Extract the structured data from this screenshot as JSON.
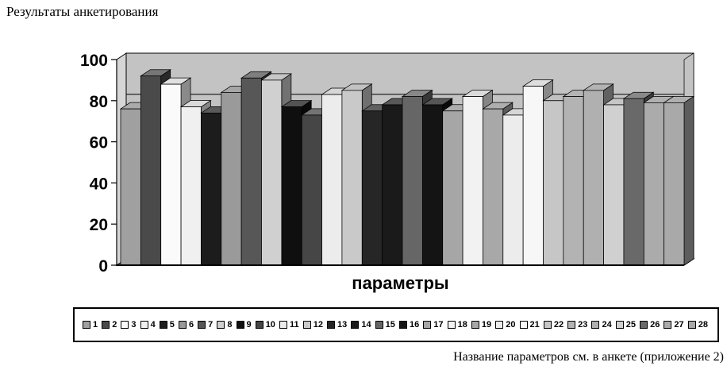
{
  "page": {
    "title": "Результаты анкетирования",
    "footnote": "Название параметров см. в анкете (приложение 2)"
  },
  "chart_data": {
    "type": "bar",
    "style": "3d-column-grayscale",
    "title": "Результаты анкетирования",
    "xlabel": "параметры",
    "ylabel": "",
    "ylim": [
      0,
      100
    ],
    "yticks": [
      0,
      20,
      40,
      60,
      80,
      100
    ],
    "grid": true,
    "legend_position": "bottom",
    "categories": [
      "1",
      "2",
      "3",
      "4",
      "5",
      "6",
      "7",
      "8",
      "9",
      "10",
      "11",
      "12",
      "13",
      "14",
      "15",
      "16",
      "17",
      "18",
      "19",
      "20",
      "21",
      "22",
      "23",
      "24",
      "25",
      "26",
      "27",
      "28"
    ],
    "values": [
      76,
      92,
      88,
      77,
      74,
      84,
      91,
      90,
      77,
      73,
      83,
      85,
      75,
      78,
      82,
      78,
      75,
      82,
      76,
      73,
      87,
      80,
      82,
      85,
      78,
      81,
      79,
      79
    ],
    "colors": [
      "#a0a0a0",
      "#4a4a4a",
      "#fafafa",
      "#f0f0f0",
      "#1c1c1c",
      "#9a9a9a",
      "#575757",
      "#d0d0d0",
      "#0f0f0f",
      "#464646",
      "#ececec",
      "#c9c9c9",
      "#262626",
      "#1a1a1a",
      "#666666",
      "#141414",
      "#a6a6a6",
      "#f2f2f2",
      "#a8a8a8",
      "#ececec",
      "#f7f7f7",
      "#c6c6c6",
      "#b3b3b3",
      "#b0b0b0",
      "#d0d0d0",
      "#696969",
      "#ababab",
      "#a9a9a9"
    ],
    "palette": {
      "back_wall": "#c3c3c3",
      "side_wall": "#d6d6d6",
      "floor": "#9a9a9a",
      "axis": "#000000"
    }
  }
}
